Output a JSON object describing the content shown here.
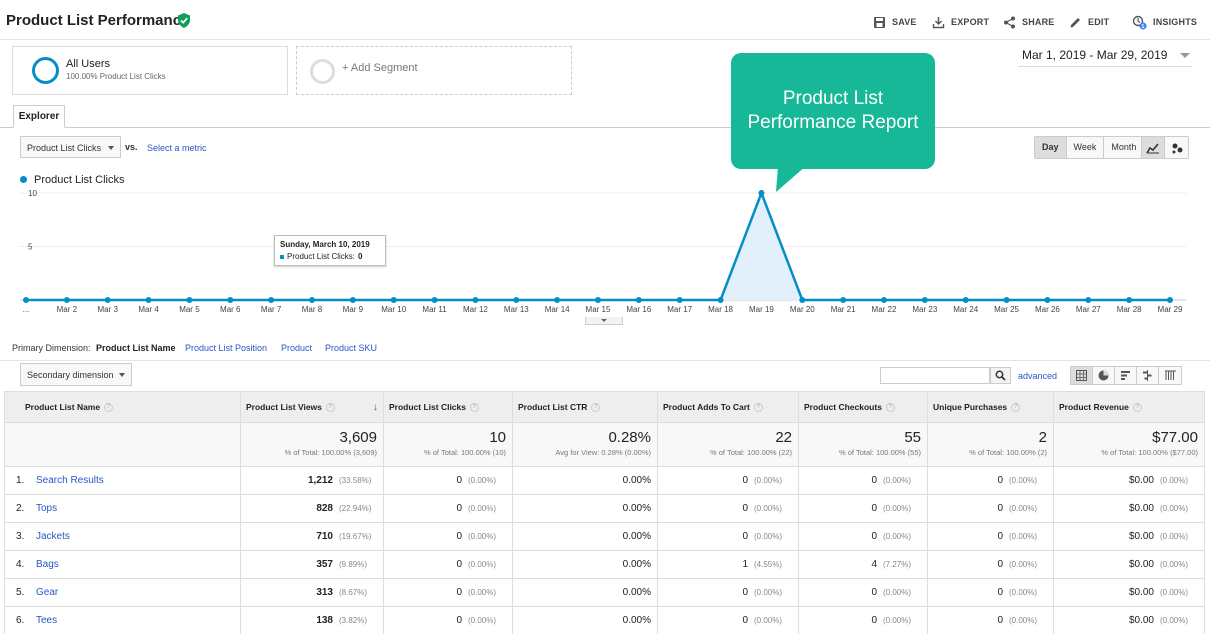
{
  "header": {
    "title": "Product List Performance",
    "toolbar": [
      {
        "label": "SAVE",
        "icon": "save-icon"
      },
      {
        "label": "EXPORT",
        "icon": "export-icon"
      },
      {
        "label": "SHARE",
        "icon": "share-icon"
      },
      {
        "label": "EDIT",
        "icon": "edit-icon"
      },
      {
        "label": "INSIGHTS",
        "icon": "insights-icon",
        "badge": "1"
      }
    ]
  },
  "segments": {
    "active": {
      "name": "All Users",
      "sub": "100.00% Product List Clicks"
    },
    "add_label": "+ Add Segment"
  },
  "date_range": "Mar 1, 2019 - Mar 29, 2019",
  "explorer": {
    "tab": "Explorer",
    "metric": "Product List Clicks",
    "vs": "vs.",
    "select_metric": "Select a metric",
    "periods": [
      "Day",
      "Week",
      "Month"
    ],
    "active_period": "Day",
    "legend": "Product List Clicks"
  },
  "tooltip": {
    "date": "Sunday, March 10, 2019",
    "metric": "Product List Clicks:",
    "value": "0"
  },
  "callout": {
    "line1": "Product List",
    "line2": "Performance Report"
  },
  "chart_data": {
    "type": "area",
    "title": "",
    "series": [
      {
        "name": "Product List Clicks",
        "values": [
          0,
          0,
          0,
          0,
          0,
          0,
          0,
          0,
          0,
          0,
          0,
          0,
          0,
          0,
          0,
          0,
          0,
          0,
          10,
          0,
          0,
          0,
          0,
          0,
          0,
          0,
          0,
          0,
          0
        ]
      }
    ],
    "x": [
      "...",
      "Mar 2",
      "Mar 3",
      "Mar 4",
      "Mar 5",
      "Mar 6",
      "Mar 7",
      "Mar 8",
      "Mar 9",
      "Mar 10",
      "Mar 11",
      "Mar 12",
      "Mar 13",
      "Mar 14",
      "Mar 15",
      "Mar 16",
      "Mar 17",
      "Mar 18",
      "Mar 19",
      "Mar 20",
      "Mar 21",
      "Mar 22",
      "Mar 23",
      "Mar 24",
      "Mar 25",
      "Mar 26",
      "Mar 27",
      "Mar 28",
      "Mar 29"
    ],
    "y_ticks": [
      "10",
      "5"
    ],
    "ylim": [
      0,
      10
    ],
    "color": "#058dc7",
    "fill": "#e1f0fa",
    "grid": true
  },
  "primary_dimension": {
    "label": "Primary Dimension:",
    "active": "Product List Name",
    "others": [
      "Product List Position",
      "Product",
      "Product SKU"
    ]
  },
  "controls": {
    "secondary_dimension": "Secondary dimension",
    "advanced": "advanced"
  },
  "table": {
    "columns": [
      "Product List Name",
      "Product List Views",
      "Product List Clicks",
      "Product List CTR",
      "Product Adds To Cart",
      "Product Checkouts",
      "Unique Purchases",
      "Product Revenue"
    ],
    "totals": [
      {
        "value": "3,609",
        "sub": "% of Total: 100.00% (3,609)"
      },
      {
        "value": "10",
        "sub": "% of Total: 100.00% (10)"
      },
      {
        "value": "0.28%",
        "sub": "Avg for View: 0.28% (0.00%)"
      },
      {
        "value": "22",
        "sub": "% of Total: 100.00% (22)"
      },
      {
        "value": "55",
        "sub": "% of Total: 100.00% (55)"
      },
      {
        "value": "2",
        "sub": "% of Total: 100.00% (2)"
      },
      {
        "value": "$77.00",
        "sub": "% of Total: 100.00% ($77.00)"
      }
    ],
    "rows": [
      {
        "idx": "1.",
        "name": "Search Results",
        "views": "1,212",
        "views_pct": "(33.58%)",
        "clicks": "0",
        "clicks_pct": "(0.00%)",
        "ctr": "0.00%",
        "adds": "0",
        "adds_pct": "(0.00%)",
        "checkouts": "0",
        "checkouts_pct": "(0.00%)",
        "purchases": "0",
        "purchases_pct": "(0.00%)",
        "revenue": "$0.00",
        "revenue_pct": "(0.00%)"
      },
      {
        "idx": "2.",
        "name": "Tops",
        "views": "828",
        "views_pct": "(22.94%)",
        "clicks": "0",
        "clicks_pct": "(0.00%)",
        "ctr": "0.00%",
        "adds": "0",
        "adds_pct": "(0.00%)",
        "checkouts": "0",
        "checkouts_pct": "(0.00%)",
        "purchases": "0",
        "purchases_pct": "(0.00%)",
        "revenue": "$0.00",
        "revenue_pct": "(0.00%)"
      },
      {
        "idx": "3.",
        "name": "Jackets",
        "views": "710",
        "views_pct": "(19.67%)",
        "clicks": "0",
        "clicks_pct": "(0.00%)",
        "ctr": "0.00%",
        "adds": "0",
        "adds_pct": "(0.00%)",
        "checkouts": "0",
        "checkouts_pct": "(0.00%)",
        "purchases": "0",
        "purchases_pct": "(0.00%)",
        "revenue": "$0.00",
        "revenue_pct": "(0.00%)"
      },
      {
        "idx": "4.",
        "name": "Bags",
        "views": "357",
        "views_pct": "(9.89%)",
        "clicks": "0",
        "clicks_pct": "(0.00%)",
        "ctr": "0.00%",
        "adds": "1",
        "adds_pct": "(4.55%)",
        "checkouts": "4",
        "checkouts_pct": "(7.27%)",
        "purchases": "0",
        "purchases_pct": "(0.00%)",
        "revenue": "$0.00",
        "revenue_pct": "(0.00%)"
      },
      {
        "idx": "5.",
        "name": "Gear",
        "views": "313",
        "views_pct": "(8.67%)",
        "clicks": "0",
        "clicks_pct": "(0.00%)",
        "ctr": "0.00%",
        "adds": "0",
        "adds_pct": "(0.00%)",
        "checkouts": "0",
        "checkouts_pct": "(0.00%)",
        "purchases": "0",
        "purchases_pct": "(0.00%)",
        "revenue": "$0.00",
        "revenue_pct": "(0.00%)"
      },
      {
        "idx": "6.",
        "name": "Tees",
        "views": "138",
        "views_pct": "(3.82%)",
        "clicks": "0",
        "clicks_pct": "(0.00%)",
        "ctr": "0.00%",
        "adds": "0",
        "adds_pct": "(0.00%)",
        "checkouts": "0",
        "checkouts_pct": "(0.00%)",
        "purchases": "0",
        "purchases_pct": "(0.00%)",
        "revenue": "$0.00",
        "revenue_pct": "(0.00%)"
      }
    ]
  }
}
